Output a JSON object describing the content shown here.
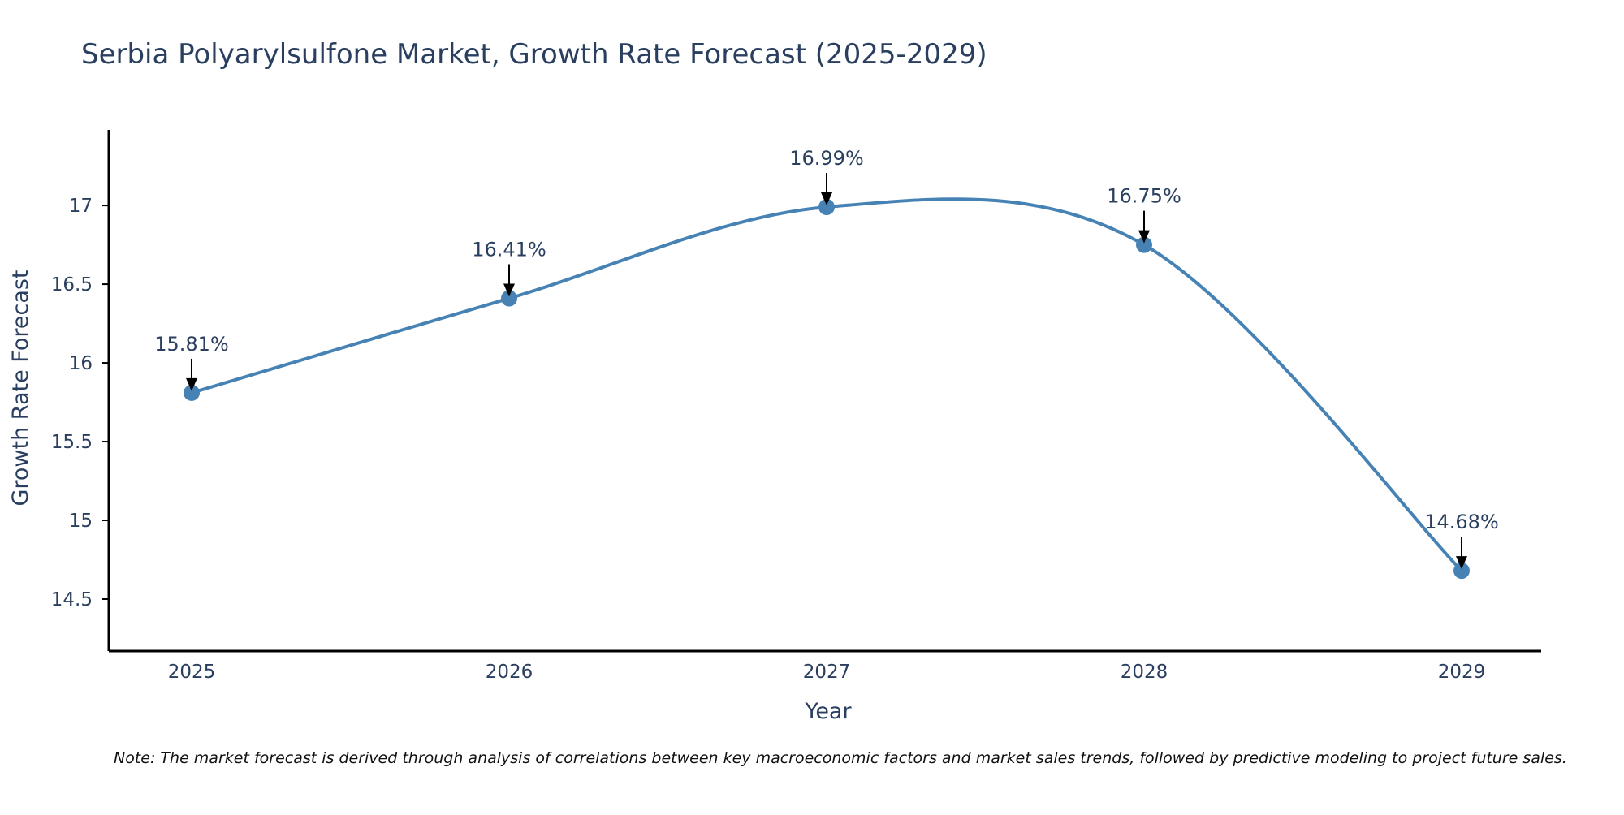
{
  "chart_data": {
    "type": "line",
    "title": "Serbia Polyarylsulfone Market, Growth Rate Forecast (2025-2029)",
    "xlabel": "Year",
    "ylabel": "Growth Rate Forecast",
    "categories": [
      "2025",
      "2026",
      "2027",
      "2028",
      "2029"
    ],
    "series": [
      {
        "name": "Growth Rate Forecast",
        "values": [
          15.81,
          16.41,
          16.99,
          16.75,
          14.68
        ]
      }
    ],
    "data_labels": [
      "15.81%",
      "16.41%",
      "16.99%",
      "16.75%",
      "14.68%"
    ],
    "yticks": [
      14.5,
      15,
      15.5,
      16,
      16.5,
      17
    ],
    "ylim": [
      14.17,
      17.48
    ],
    "grid": false,
    "line_shape": "spline",
    "color": "#4682b4",
    "note": "Note: The market forecast is derived through analysis of correlations between key macroeconomic factors and market sales trends, followed by predictive modeling to project future sales."
  }
}
